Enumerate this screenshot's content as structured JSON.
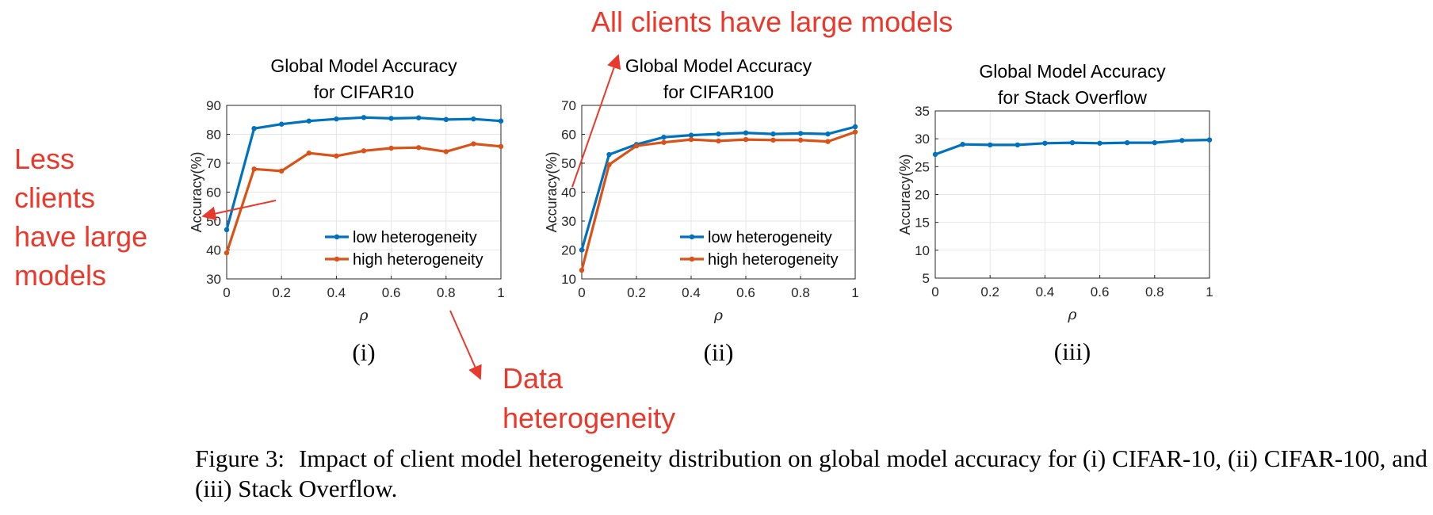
{
  "chart_data": [
    {
      "type": "line",
      "title": [
        "Global Model Accuracy",
        "for CIFAR10"
      ],
      "xlabel": "ρ",
      "ylabel": "Accuracy(%)",
      "panel_label": "(i)",
      "xlim": [
        0,
        1
      ],
      "ylim": [
        30,
        90
      ],
      "xticks": [
        0,
        0.2,
        0.4,
        0.6,
        0.8,
        1
      ],
      "xtick_labels": [
        "0",
        "0.2",
        "0.4",
        "0.6",
        "0.8",
        "1"
      ],
      "yticks": [
        30,
        40,
        50,
        60,
        70,
        80,
        90
      ],
      "ytick_labels": [
        "30",
        "40",
        "50",
        "60",
        "70",
        "80",
        "90"
      ],
      "grid": true,
      "legend_position": "bottom-right",
      "x": [
        0,
        0.1,
        0.2,
        0.3,
        0.4,
        0.5,
        0.6,
        0.7,
        0.8,
        0.9,
        1
      ],
      "series": [
        {
          "name": "low heterogeneity",
          "color": "#0072BD",
          "values": [
            47,
            82,
            83.5,
            84.6,
            85.3,
            85.8,
            85.5,
            85.7,
            85.1,
            85.3,
            84.6
          ]
        },
        {
          "name": "high heterogeneity",
          "color": "#D95319",
          "values": [
            39,
            68,
            67.3,
            73.5,
            72.5,
            74.3,
            75.2,
            75.4,
            74,
            76.7,
            75.8
          ]
        }
      ]
    },
    {
      "type": "line",
      "title": [
        "Global Model Accuracy",
        "for CIFAR100"
      ],
      "xlabel": "ρ",
      "ylabel": "Accuracy(%)",
      "panel_label": "(ii)",
      "xlim": [
        0,
        1
      ],
      "ylim": [
        10,
        70
      ],
      "xticks": [
        0,
        0.2,
        0.4,
        0.6,
        0.8,
        1
      ],
      "xtick_labels": [
        "0",
        "0.2",
        "0.4",
        "0.6",
        "0.8",
        "1"
      ],
      "yticks": [
        10,
        20,
        30,
        40,
        50,
        60,
        70
      ],
      "ytick_labels": [
        "10",
        "20",
        "30",
        "40",
        "50",
        "60",
        "70"
      ],
      "grid": true,
      "legend_position": "bottom-right",
      "x": [
        0,
        0.1,
        0.2,
        0.3,
        0.4,
        0.5,
        0.6,
        0.7,
        0.8,
        0.9,
        1
      ],
      "series": [
        {
          "name": "low heterogeneity",
          "color": "#0072BD",
          "values": [
            20,
            53,
            56.5,
            59,
            59.7,
            60.1,
            60.5,
            60.1,
            60.3,
            60.1,
            62.6
          ]
        },
        {
          "name": "high heterogeneity",
          "color": "#D95319",
          "values": [
            13,
            49.5,
            56,
            57.2,
            58.2,
            57.7,
            58.2,
            58,
            58,
            57.5,
            60.8
          ]
        }
      ]
    },
    {
      "type": "line",
      "title": [
        "Global Model Accuracy",
        "for Stack Overflow"
      ],
      "xlabel": "ρ",
      "ylabel": "Accuracy(%)",
      "panel_label": "(iii)",
      "xlim": [
        0,
        1
      ],
      "ylim": [
        5,
        35
      ],
      "xticks": [
        0,
        0.2,
        0.4,
        0.6,
        0.8,
        1
      ],
      "xtick_labels": [
        "0",
        "0.2",
        "0.4",
        "0.6",
        "0.8",
        "1"
      ],
      "yticks": [
        5,
        10,
        15,
        20,
        25,
        30,
        35
      ],
      "ytick_labels": [
        "5",
        "10",
        "15",
        "20",
        "25",
        "30",
        "35"
      ],
      "grid": true,
      "legend_position": "none",
      "x": [
        0,
        0.1,
        0.2,
        0.3,
        0.4,
        0.5,
        0.6,
        0.7,
        0.8,
        0.9,
        1
      ],
      "series": [
        {
          "name": "",
          "color": "#0072BD",
          "values": [
            27.2,
            29,
            28.9,
            28.9,
            29.2,
            29.3,
            29.2,
            29.3,
            29.3,
            29.7,
            29.8
          ]
        }
      ]
    }
  ],
  "annotations": {
    "color": "#E8392C",
    "all_clients": "All clients have large models",
    "less_clients": [
      "Less",
      "clients",
      "have large",
      "models"
    ],
    "data_heterogeneity": [
      "Data",
      "heterogeneity"
    ]
  },
  "caption": {
    "label": "Figure 3:",
    "text": "Impact of client model heterogeneity distribution on global model accuracy for (i) CIFAR-10, (ii) CIFAR-100, and (iii) Stack Overflow."
  }
}
